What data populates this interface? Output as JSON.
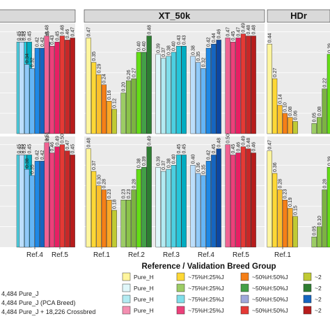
{
  "chart_data": {
    "type": "bar",
    "xlabel": "Reference / Validation Breed Group",
    "panel_titles": [
      "",
      "XT_50k",
      "HDr"
    ],
    "categories": [
      "Ref.1",
      "Ref.2",
      "Ref.3",
      "Ref.4",
      "Ref.5"
    ],
    "bar_colors": [
      [
        "#fff59d",
        "#fdd835",
        "#fbc02d",
        "#f57f17",
        "#f9a825",
        "#c0ca33"
      ],
      [
        "#9ccc65",
        "#8bc34a",
        "#7cb342",
        "#64dd17",
        "#43a047",
        "#2e7d32"
      ],
      [
        "#e0f7fa",
        "#b2ebf2",
        "#80deea",
        "#4dd0e1",
        "#26c6da",
        "#00acc1"
      ],
      [
        "#bbdefb",
        "#90caf9",
        "#64b5f6",
        "#1e88e5",
        "#1565c0",
        "#0d47a1"
      ],
      [
        "#f06292",
        "#ec407a",
        "#e91e63",
        "#e53935",
        "#c62828",
        "#b71c1c"
      ]
    ],
    "panels": [
      {
        "row": 0,
        "col": 0,
        "values": [
          [],
          [],
          [
            null,
            null,
            null,
            0.45,
            0.45,
            0.45
          ],
          [
            0.45,
            0.34,
            0.32,
            0.42,
            0.42,
            0.45
          ],
          [
            0.48,
            0.43,
            0.45,
            0.48,
            0.46,
            0.47
          ]
        ]
      },
      {
        "row": 0,
        "col": 1,
        "values": [
          [
            0.47,
            0.35,
            0.29,
            0.24,
            0.16,
            0.12
          ],
          [
            0.2,
            0.26,
            0.27,
            0.4,
            0.4,
            0.48
          ],
          [
            0.39,
            0.37,
            0.38,
            0.4,
            0.43,
            0.43
          ],
          [
            0.38,
            0.35,
            0.32,
            0.42,
            0.44,
            0.46
          ],
          [
            0.47,
            0.45,
            0.47,
            0.49,
            0.48,
            0.48
          ]
        ]
      },
      {
        "row": 0,
        "col": 2,
        "values": [
          [
            0.44,
            0.27,
            0.14,
            0.1,
            0.08,
            0.06
          ],
          [
            0.05,
            0.08,
            0.22,
            0.39,
            0.46,
            0.5
          ]
        ]
      },
      {
        "row": 1,
        "col": 0,
        "values": [
          [],
          [],
          [
            null,
            null,
            null,
            0.45,
            0.45,
            0.45
          ],
          [
            0.45,
            0.38,
            0.35,
            0.42,
            0.42,
            0.49
          ],
          [
            0.51,
            0.46,
            0.49,
            0.5,
            0.47,
            0.45
          ]
        ]
      },
      {
        "row": 1,
        "col": 1,
        "values": [
          [
            0.48,
            0.37,
            0.3,
            0.28,
            0.23,
            0.18
          ],
          [
            0.23,
            0.23,
            0.28,
            0.38,
            0.39,
            0.49
          ],
          [
            0.39,
            0.37,
            0.38,
            0.4,
            0.45,
            0.45
          ],
          [
            0.4,
            0.36,
            0.35,
            0.42,
            0.45,
            0.48
          ],
          [
            0.5,
            0.45,
            0.46,
            0.49,
            0.48,
            0.46
          ]
        ]
      },
      {
        "row": 1,
        "col": 2,
        "values": [
          [
            0.47,
            0.36,
            0.28,
            0.23,
            0.19,
            0.15
          ],
          [
            0.05,
            0.1,
            0.28,
            0.39,
            0.47,
            0.52
          ]
        ]
      }
    ],
    "partial_x_label": "Ref.5"
  },
  "legend": {
    "group_lines": [
      "4,484 Pure_J",
      "4,484 Pure_J (PCA Breed)",
      "4,484 Pure_J + 18,226 Crossbred"
    ],
    "columns": [
      {
        "items": [
          {
            "label": "Pure_H",
            "color": "#fff59d"
          },
          {
            "label": "Pure_H",
            "color": "#e0f7fa"
          },
          {
            "label": "Pure_H",
            "color": "#b2ebf2"
          },
          {
            "label": "Pure_H",
            "color": "#f48fb1"
          }
        ]
      },
      {
        "items": [
          {
            "label": "~75%H:25%J",
            "color": "#fdd835"
          },
          {
            "label": "~75%H:25%J",
            "color": "#9ccc65"
          },
          {
            "label": "~75%H:25%J",
            "color": "#80deea"
          },
          {
            "label": "~75%H:25%J",
            "color": "#ec407a"
          }
        ]
      },
      {
        "items": [
          {
            "label": "~50%H:50%J",
            "color": "#f57f17"
          },
          {
            "label": "~50%H:50%J",
            "color": "#43a047"
          },
          {
            "label": "~50%H:50%J",
            "color": "#9fa8da"
          },
          {
            "label": "~50%H:50%J",
            "color": "#e53935"
          }
        ]
      },
      {
        "items": [
          {
            "label": "~2",
            "color": "#c0ca33"
          },
          {
            "label": "~2",
            "color": "#2e7d32"
          },
          {
            "label": "~2",
            "color": "#1565c0"
          },
          {
            "label": "~2",
            "color": "#b71c1c"
          }
        ]
      }
    ]
  }
}
